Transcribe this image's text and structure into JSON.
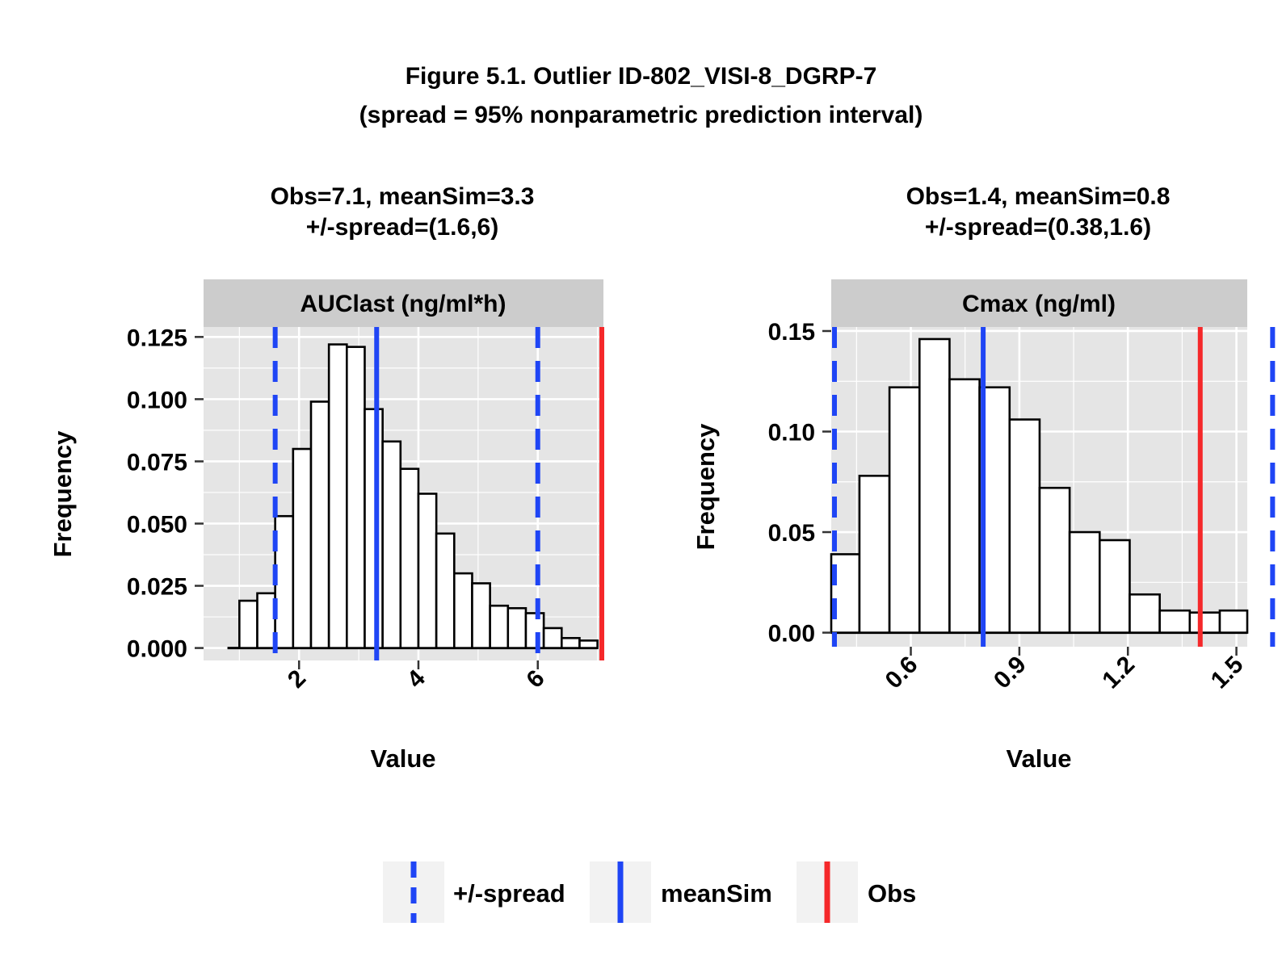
{
  "figure": {
    "title_line1": "Figure 5.1. Outlier ID-802_VISI-8_DGRP-7",
    "title_line2": "(spread = 95% nonparametric prediction interval)"
  },
  "colors": {
    "panel_bg": "#e5e5e5",
    "strip_bg": "#cccccc",
    "grid": "#ffffff",
    "bar_fill": "#ffffff",
    "bar_stroke": "#000000",
    "spread": "#1f45f5",
    "meanSim": "#1f45f5",
    "obs": "#f5282a",
    "legend_key_bg": "#f2f2f2"
  },
  "legend": {
    "position": "bottom",
    "items": [
      {
        "label": "+/-spread",
        "style": "dashed",
        "color": "#1f45f5"
      },
      {
        "label": "meanSim",
        "style": "solid",
        "color": "#1f45f5"
      },
      {
        "label": "Obs",
        "style": "solid",
        "color": "#f5282a"
      }
    ]
  },
  "chart_data": [
    {
      "type": "bar",
      "subtitle_line1": "Obs=7.1, meanSim=3.3",
      "subtitle_line2": "+/-spread=(1.6,6)",
      "strip_label": "AUClast (ng/ml*h)",
      "xlabel": "Value",
      "ylabel": "Frequency",
      "xlim": [
        0.4,
        7.1
      ],
      "ylim": [
        -0.005,
        0.129
      ],
      "xticks": [
        2,
        4,
        6
      ],
      "xtick_labels": [
        "2",
        "4",
        "6"
      ],
      "yticks": [
        0,
        0.025,
        0.05,
        0.075,
        0.1,
        0.125
      ],
      "ytick_labels": [
        "0.000",
        "0.025",
        "0.050",
        "0.075",
        "0.100",
        "0.125"
      ],
      "grid": true,
      "baseline_start": 0.8,
      "bin_width": 0.3,
      "bin_starts": [
        1.0,
        1.3,
        1.6,
        1.9,
        2.2,
        2.5,
        2.8,
        3.1,
        3.4,
        3.7,
        4.0,
        4.3,
        4.6,
        4.9,
        5.2,
        5.5,
        5.8,
        6.1,
        6.4,
        6.7
      ],
      "values": [
        0.019,
        0.022,
        0.053,
        0.08,
        0.099,
        0.122,
        0.121,
        0.096,
        0.083,
        0.072,
        0.062,
        0.046,
        0.03,
        0.026,
        0.017,
        0.016,
        0.014,
        0.008,
        0.004,
        0.003
      ],
      "obs": 7.1,
      "meanSim": 3.3,
      "spread": [
        1.6,
        6.0
      ]
    },
    {
      "type": "bar",
      "subtitle_line1": "Obs=1.4, meanSim=0.8",
      "subtitle_line2": "+/-spread=(0.38,1.6)",
      "strip_label": "Cmax (ng/ml)",
      "xlabel": "Value",
      "ylabel": "Frequency",
      "xlim": [
        0.38,
        1.53
      ],
      "ylim": [
        -0.007,
        0.152
      ],
      "xticks": [
        0.6,
        0.9,
        1.2,
        1.5
      ],
      "xtick_labels": [
        "0.6",
        "0.9",
        "1.2",
        "1.5"
      ],
      "yticks": [
        0,
        0.05,
        0.1,
        0.15
      ],
      "ytick_labels": [
        "0.00",
        "0.05",
        "0.10",
        "0.15"
      ],
      "grid": true,
      "baseline_start": 0.38,
      "bin_width": 0.083,
      "bin_starts": [
        0.375,
        0.458,
        0.541,
        0.624,
        0.707,
        0.79,
        0.873,
        0.956,
        1.039,
        1.122,
        1.205,
        1.288,
        1.371,
        1.454
      ],
      "values": [
        0.039,
        0.078,
        0.122,
        0.146,
        0.126,
        0.122,
        0.106,
        0.072,
        0.05,
        0.046,
        0.019,
        0.011,
        0.01,
        0.011
      ],
      "obs": 1.4,
      "meanSim": 0.8,
      "spread": [
        0.38,
        1.6
      ]
    }
  ]
}
